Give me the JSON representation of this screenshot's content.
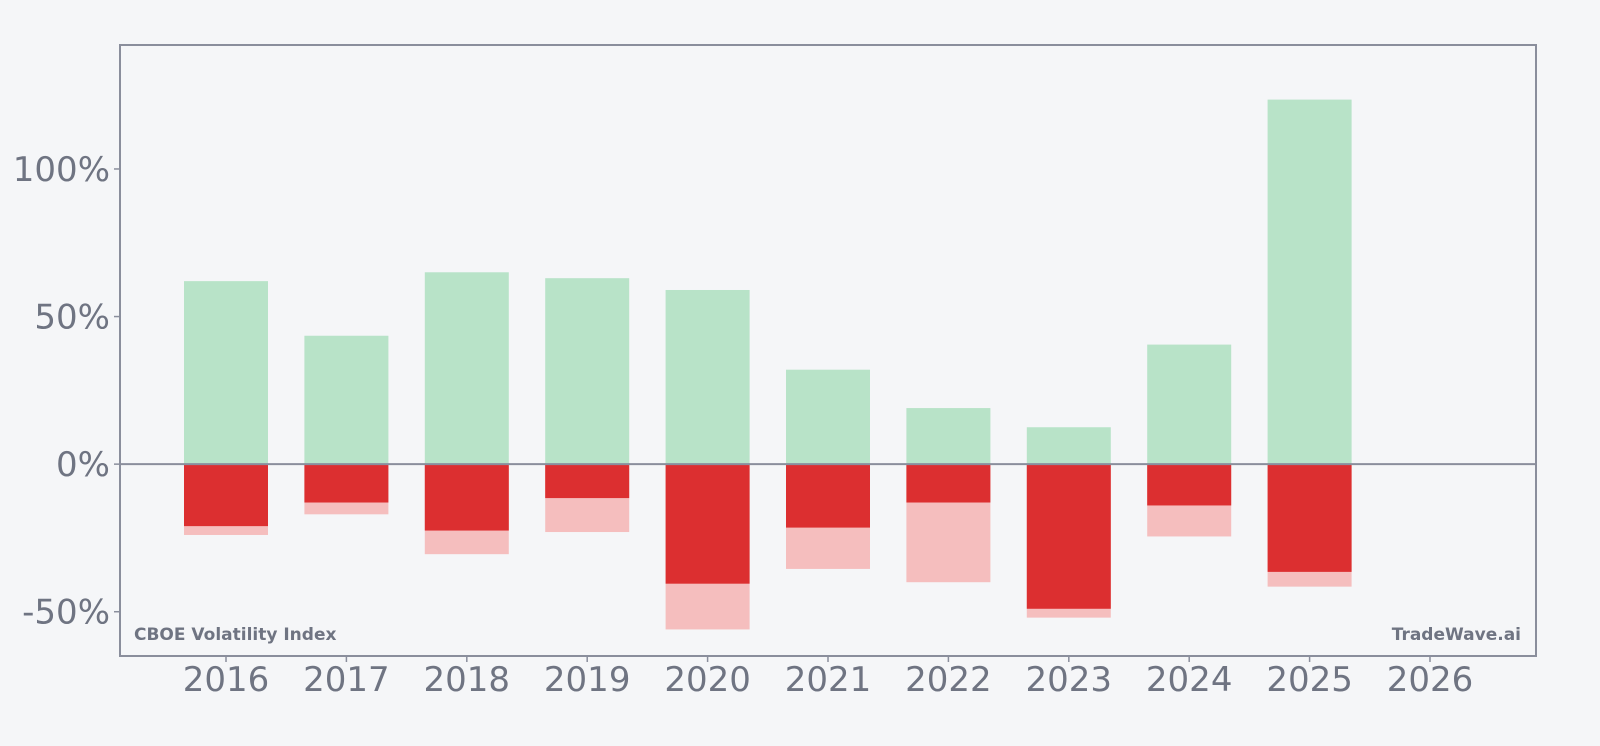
{
  "chart_data": {
    "type": "bar",
    "title": "",
    "xlabel": "",
    "ylabel": "",
    "categories": [
      "2016",
      "2017",
      "2018",
      "2019",
      "2020",
      "2021",
      "2022",
      "2023",
      "2024",
      "2025",
      "2026"
    ],
    "ylim": [
      -65,
      142
    ],
    "y_ticks": [
      100,
      50,
      0,
      -50
    ],
    "y_tick_labels": [
      "100%",
      "50%",
      "0%",
      "-50%"
    ],
    "series": [
      {
        "values": [
          62,
          43.5,
          65,
          63,
          59,
          32,
          19,
          12.5,
          40.5,
          123.5,
          null
        ]
      },
      {
        "values": [
          -21,
          -13,
          -22.5,
          -11.5,
          -40.5,
          -21.5,
          -13,
          -49,
          -14,
          -36.5,
          null
        ]
      },
      {
        "values": [
          -24,
          -17,
          -30.5,
          -23,
          -56,
          -35.5,
          -40,
          -52,
          -24.5,
          -41.5,
          null
        ]
      }
    ],
    "colors": {
      "max_gain": "#b8e3c8",
      "return": "#dc2f30",
      "max_drawdown": "#f5bebe",
      "axis": "#8a8e9c",
      "background": "#f5f6f8"
    },
    "grid": false,
    "annotations": {
      "left": "CBOE Volatility Index",
      "right": "TradeWave.ai"
    }
  }
}
